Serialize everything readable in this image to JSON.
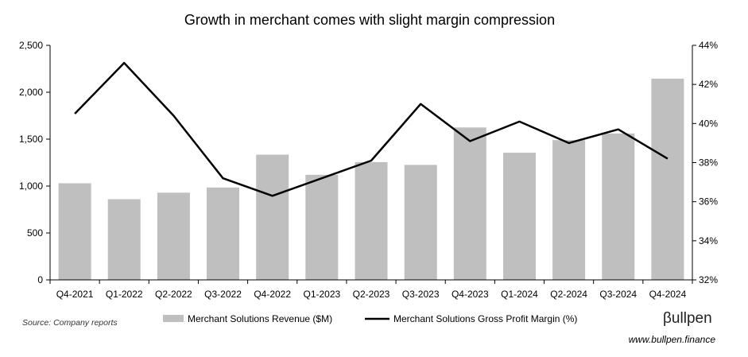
{
  "chart_data": {
    "type": "bar",
    "title": "Growth in merchant comes with slight margin compression",
    "categories": [
      "Q4-2021",
      "Q1-2022",
      "Q2-2022",
      "Q3-2022",
      "Q4-2022",
      "Q1-2023",
      "Q2-2023",
      "Q3-2023",
      "Q4-2023",
      "Q1-2024",
      "Q2-2024",
      "Q3-2024",
      "Q4-2024"
    ],
    "series": [
      {
        "name": "Merchant Solutions Revenue ($M)",
        "type": "bar",
        "axis": "left",
        "color": "#bfbfbf",
        "values": [
          1030,
          860,
          930,
          985,
          1335,
          1120,
          1255,
          1225,
          1625,
          1355,
          1490,
          1560,
          2145
        ]
      },
      {
        "name": "Merchant Solutions Gross Profit Margin (%)",
        "type": "line",
        "axis": "right",
        "color": "#000000",
        "values": [
          40.5,
          43.1,
          40.4,
          37.2,
          36.3,
          37.2,
          38.1,
          41.0,
          39.1,
          40.1,
          39.0,
          39.7,
          38.2
        ]
      }
    ],
    "y_left": {
      "ylim": [
        0,
        2500
      ],
      "ticks": [
        "0",
        "500",
        "1,000",
        "1,500",
        "2,000",
        "2,500"
      ],
      "tick_values": [
        0,
        500,
        1000,
        1500,
        2000,
        2500
      ]
    },
    "y_right": {
      "ylim": [
        32,
        44
      ],
      "ticks": [
        "32%",
        "34%",
        "36%",
        "38%",
        "40%",
        "42%",
        "44%"
      ],
      "tick_values": [
        32,
        34,
        36,
        38,
        40,
        42,
        44
      ]
    },
    "grid": false,
    "legend_position": "bottom"
  },
  "footer": {
    "source": "Source: Company reports",
    "brand": "βullpen",
    "url": "www.bullpen.finance"
  }
}
